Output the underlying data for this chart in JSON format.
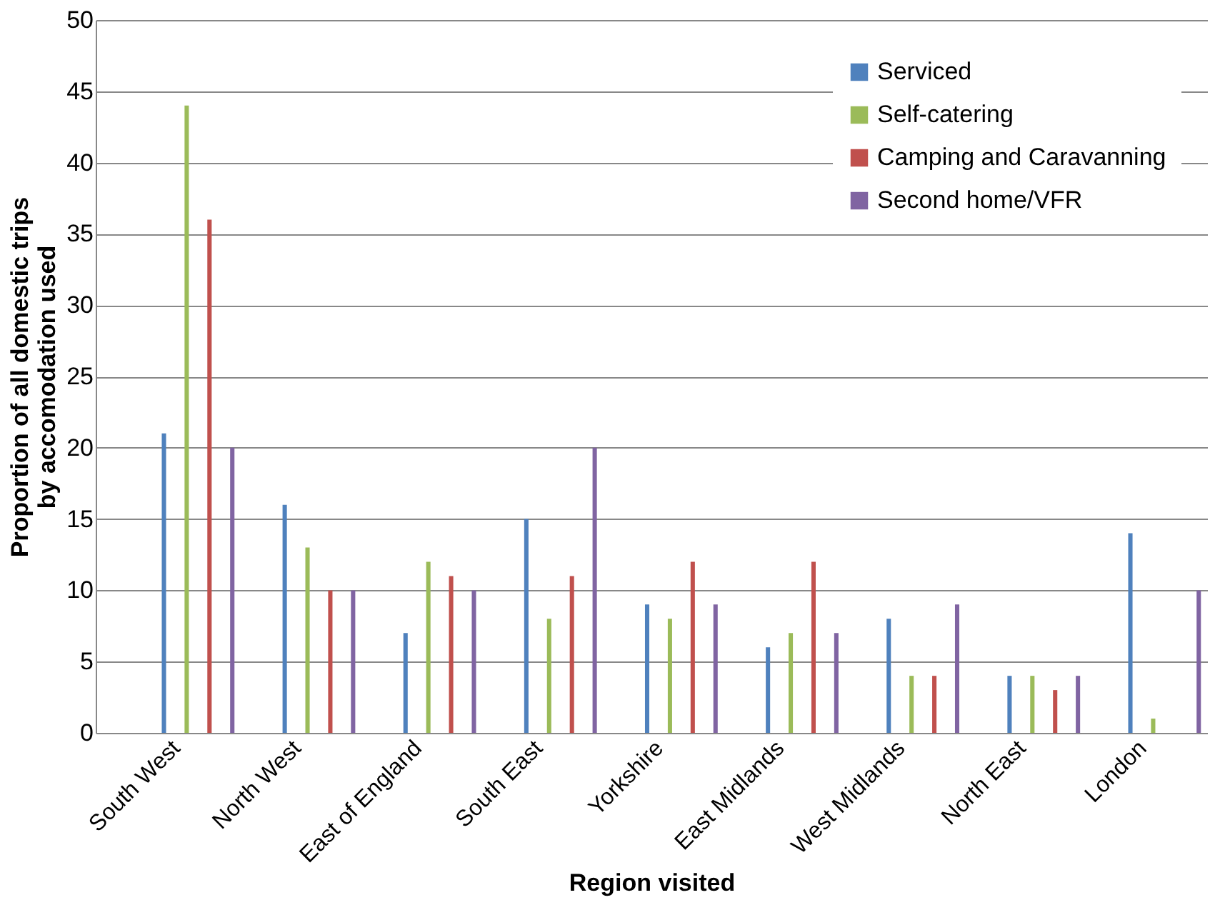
{
  "chart_data": {
    "type": "bar",
    "xlabel": "Region visited",
    "ylabel": "Proportion of all domestic trips by accomodation used",
    "categories": [
      "South West",
      "North West",
      "East of England",
      "South East",
      "Yorkshire",
      "East Midlands",
      "West Midlands",
      "North East",
      "London"
    ],
    "series": [
      {
        "name": "Serviced",
        "color": "#4f81bd",
        "values": [
          21,
          16,
          7,
          15,
          9,
          6,
          8,
          4,
          14
        ]
      },
      {
        "name": "Self-catering",
        "color": "#9bbb59",
        "values": [
          44,
          13,
          12,
          8,
          8,
          7,
          4,
          4,
          1
        ]
      },
      {
        "name": "Camping and Caravanning",
        "color": "#c0504d",
        "values": [
          36,
          10,
          11,
          11,
          12,
          12,
          4,
          3,
          0
        ]
      },
      {
        "name": "Second home/VFR",
        "color": "#8064a2",
        "values": [
          20,
          10,
          10,
          20,
          9,
          7,
          9,
          4,
          10
        ]
      }
    ],
    "ylim": [
      0,
      50
    ],
    "yticks": [
      0,
      5,
      10,
      15,
      20,
      25,
      30,
      35,
      40,
      45,
      50
    ],
    "grid": "y",
    "legend": "top right"
  }
}
